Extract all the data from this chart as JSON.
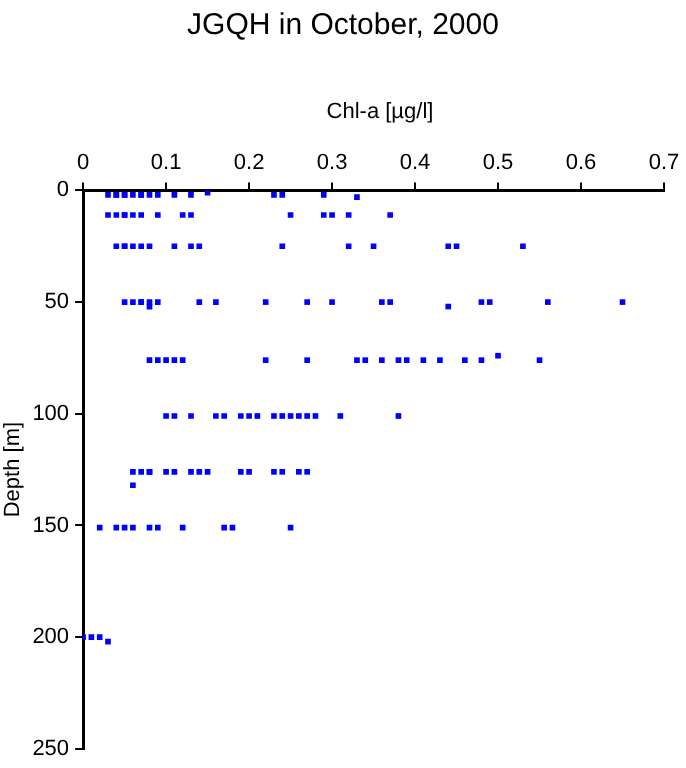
{
  "chart_data": {
    "type": "scatter",
    "title": "JGQH in October, 2000",
    "xlabel": "Chl-a [µg/l]",
    "ylabel": "Depth [m]",
    "x": [
      0.03,
      0.04,
      0.04,
      0.05,
      0.05,
      0.06,
      0.07,
      0.07,
      0.08,
      0.09,
      0.11,
      0.13,
      0.15,
      0.23,
      0.24,
      0.29,
      0.33,
      0.03,
      0.04,
      0.05,
      0.05,
      0.06,
      0.07,
      0.09,
      0.12,
      0.13,
      0.25,
      0.29,
      0.3,
      0.32,
      0.37,
      0.04,
      0.05,
      0.05,
      0.06,
      0.07,
      0.08,
      0.11,
      0.13,
      0.14,
      0.24,
      0.32,
      0.35,
      0.44,
      0.45,
      0.53,
      0.05,
      0.06,
      0.07,
      0.07,
      0.08,
      0.09,
      0.14,
      0.16,
      0.22,
      0.27,
      0.3,
      0.36,
      0.37,
      0.44,
      0.48,
      0.49,
      0.56,
      0.65,
      0.08,
      0.08,
      0.09,
      0.1,
      0.11,
      0.12,
      0.22,
      0.27,
      0.33,
      0.34,
      0.36,
      0.38,
      0.39,
      0.41,
      0.43,
      0.46,
      0.48,
      0.5,
      0.55,
      0.1,
      0.11,
      0.13,
      0.16,
      0.17,
      0.19,
      0.2,
      0.21,
      0.23,
      0.24,
      0.25,
      0.26,
      0.27,
      0.28,
      0.31,
      0.38,
      0.06,
      0.07,
      0.08,
      0.08,
      0.1,
      0.11,
      0.13,
      0.14,
      0.15,
      0.19,
      0.2,
      0.23,
      0.24,
      0.26,
      0.27,
      0.06,
      0.02,
      0.04,
      0.05,
      0.06,
      0.08,
      0.09,
      0.12,
      0.17,
      0.18,
      0.25,
      0.0,
      0.01,
      0.02,
      0.03
    ],
    "series": [
      {
        "color": "#0000ff",
        "values": [
          2,
          2,
          2,
          2,
          2,
          2,
          2,
          2,
          2,
          2,
          2,
          2,
          1,
          2,
          2,
          2,
          3,
          11,
          11,
          11,
          11,
          11,
          11,
          11,
          11,
          11,
          11,
          11,
          11,
          11,
          11,
          25,
          25,
          25,
          25,
          25,
          25,
          25,
          25,
          25,
          25,
          25,
          25,
          25,
          25,
          25,
          50,
          50,
          50,
          50,
          50,
          50,
          50,
          50,
          50,
          50,
          50,
          50,
          50,
          52,
          50,
          50,
          50,
          50,
          52,
          76,
          76,
          76,
          76,
          76,
          76,
          76,
          76,
          76,
          76,
          76,
          76,
          76,
          76,
          76,
          76,
          74,
          76,
          101,
          101,
          101,
          101,
          101,
          101,
          101,
          101,
          101,
          101,
          101,
          101,
          101,
          101,
          101,
          101,
          126,
          126,
          126,
          126,
          126,
          126,
          126,
          126,
          126,
          126,
          126,
          126,
          126,
          126,
          126,
          132,
          151,
          151,
          151,
          151,
          151,
          151,
          151,
          151,
          151,
          151,
          200,
          200,
          200,
          202
        ]
      }
    ],
    "xlim": [
      0,
      0.7
    ],
    "xticks": [
      0,
      0.1,
      0.2,
      0.3,
      0.4,
      0.5,
      0.6,
      0.7
    ],
    "ylim": [
      250,
      0
    ],
    "yticks": [
      0,
      50,
      100,
      150,
      200,
      250
    ],
    "marker": "square",
    "grid": false,
    "legend": false
  }
}
